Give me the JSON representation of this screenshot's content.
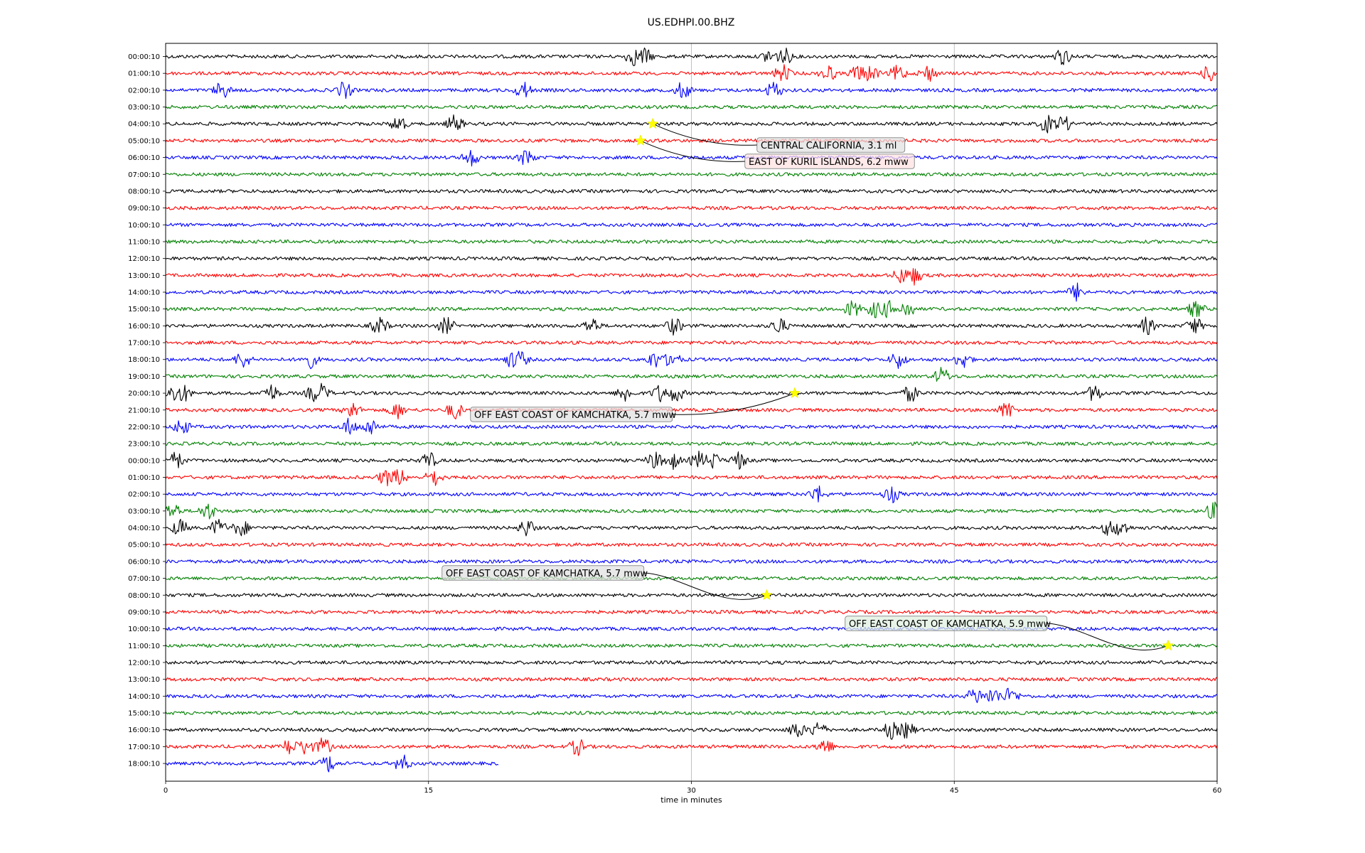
{
  "chart_data": {
    "type": "line",
    "title": "US.EDHPI.00.BHZ",
    "xlabel": "time in minutes",
    "ylabel": "",
    "xlim": [
      0,
      60
    ],
    "x_ticks": [
      0,
      15,
      30,
      45,
      60
    ],
    "grid": "vertical lines at 15-minute ticks",
    "trace_colors": [
      "#000000",
      "#ff0000",
      "#0000ff",
      "#008000"
    ],
    "row_labels": [
      "00:00:10",
      "01:00:10",
      "02:00:10",
      "03:00:10",
      "04:00:10",
      "05:00:10",
      "06:00:10",
      "07:00:10",
      "08:00:10",
      "09:00:10",
      "10:00:10",
      "11:00:10",
      "12:00:10",
      "13:00:10",
      "14:00:10",
      "15:00:10",
      "16:00:10",
      "17:00:10",
      "18:00:10",
      "19:00:10",
      "20:00:10",
      "21:00:10",
      "22:00:10",
      "23:00:10",
      "00:00:10",
      "01:00:10",
      "02:00:10",
      "03:00:10",
      "04:00:10",
      "05:00:10",
      "06:00:10",
      "07:00:10",
      "08:00:10",
      "09:00:10",
      "10:00:10",
      "11:00:10",
      "12:00:10",
      "13:00:10",
      "14:00:10",
      "15:00:10",
      "16:00:10",
      "17:00:10",
      "18:00:10"
    ],
    "last_row_end_minute": 19,
    "bursts": [
      {
        "row": 0,
        "minutes": [
          26.7,
          27.3,
          34.5,
          35.3,
          51.2
        ]
      },
      {
        "row": 1,
        "minutes": [
          35.2,
          37.8,
          39.5,
          40.2,
          41.8,
          43.5,
          59.6
        ]
      },
      {
        "row": 2,
        "minutes": [
          3.2,
          10.2,
          20.4,
          29.5,
          34.7
        ]
      },
      {
        "row": 4,
        "minutes": [
          13.3,
          16.5,
          50.3,
          51.2
        ]
      },
      {
        "row": 6,
        "minutes": [
          17.4,
          20.6
        ]
      },
      {
        "row": 13,
        "minutes": [
          42.0,
          42.7
        ]
      },
      {
        "row": 14,
        "minutes": [
          52.0
        ]
      },
      {
        "row": 15,
        "minutes": [
          39.2,
          40.5,
          41.2,
          42.3,
          58.8
        ]
      },
      {
        "row": 16,
        "minutes": [
          12.2,
          16.0,
          24.3,
          29.0,
          35.0,
          56.0,
          58.7
        ]
      },
      {
        "row": 18,
        "minutes": [
          4.4,
          8.2,
          19.8,
          20.2,
          27.9,
          28.9,
          41.8,
          45.5
        ]
      },
      {
        "row": 19,
        "minutes": [
          44.3
        ]
      },
      {
        "row": 20,
        "minutes": [
          0.5,
          1.0,
          6.0,
          8.5,
          8.9,
          26.2,
          28.2,
          29.1,
          42.5,
          53.0
        ]
      },
      {
        "row": 21,
        "minutes": [
          10.6,
          13.2,
          16.5,
          48.0
        ]
      },
      {
        "row": 22,
        "minutes": [
          0.9,
          10.5,
          11.7
        ]
      },
      {
        "row": 24,
        "minutes": [
          0.6,
          15.0,
          27.9,
          28.9,
          30.4,
          31.2,
          32.7
        ]
      },
      {
        "row": 25,
        "minutes": [
          12.6,
          13.3,
          15.3
        ]
      },
      {
        "row": 26,
        "minutes": [
          37.2,
          41.4
        ]
      },
      {
        "row": 27,
        "minutes": [
          0.4,
          2.4,
          59.8
        ]
      },
      {
        "row": 28,
        "minutes": [
          0.8,
          3.0,
          4.3,
          20.6,
          53.9,
          54.5
        ]
      },
      {
        "row": 38,
        "minutes": [
          46.2,
          47.2,
          48.2
        ]
      },
      {
        "row": 40,
        "minutes": [
          36.0,
          37.2,
          41.4,
          42.3
        ]
      },
      {
        "row": 41,
        "minutes": [
          7.1,
          8.0,
          9.0,
          23.5,
          37.6
        ]
      },
      {
        "row": 42,
        "minutes": [
          9.3,
          13.5
        ]
      }
    ],
    "events": [
      {
        "row": 4,
        "minute": 27.8,
        "label": "CENTRAL CALIFORNIA, 3.1 ml",
        "box_color": "#000000"
      },
      {
        "row": 5,
        "minute": 27.1,
        "label": "EAST OF KURIL ISLANDS, 6.2 mww",
        "box_color": "#ff0000"
      },
      {
        "row": 20,
        "minute": 35.9,
        "label": "OFF EAST COAST OF KAMCHATKA, 5.7 mww",
        "box_color": "#000000"
      },
      {
        "row": 32,
        "minute": 34.3,
        "label": "OFF EAST COAST OF KAMCHATKA, 5.7 mww",
        "box_color": "#000000"
      },
      {
        "row": 35,
        "minute": 57.2,
        "label": "OFF EAST COAST OF KAMCHATKA, 5.9 mww",
        "box_color": "#008000"
      }
    ]
  }
}
